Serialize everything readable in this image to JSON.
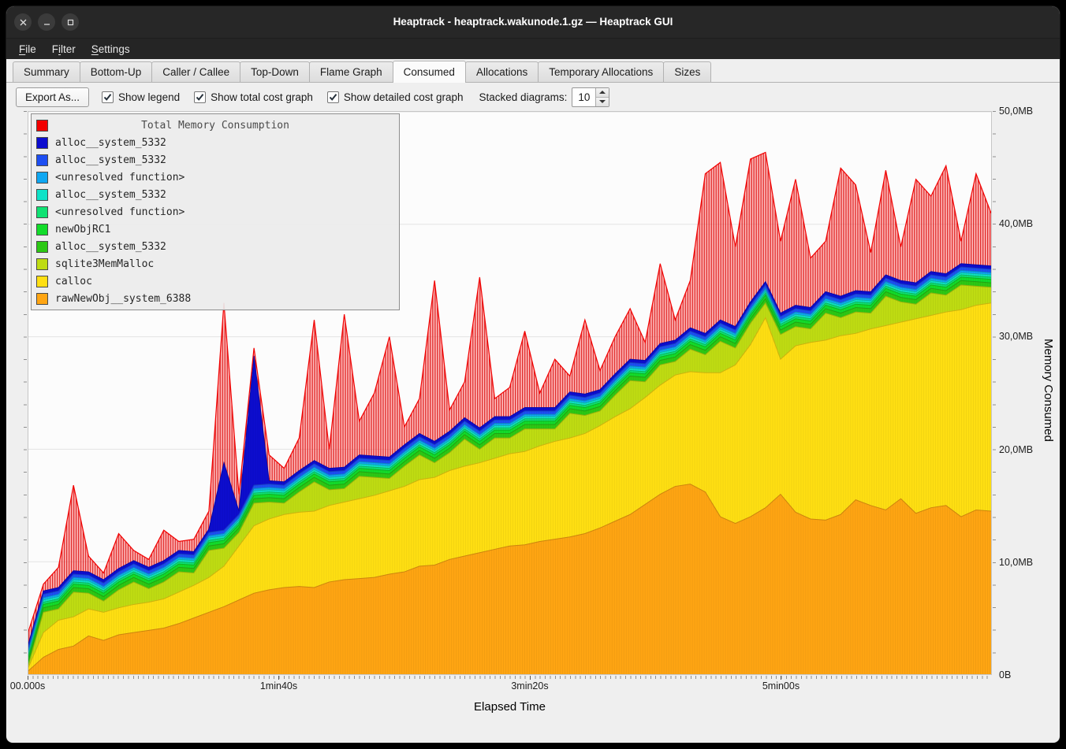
{
  "window": {
    "title": "Heaptrack - heaptrack.wakunode.1.gz — Heaptrack GUI",
    "controls": [
      "close",
      "minimize",
      "maximize"
    ]
  },
  "menu": {
    "items": [
      {
        "label": "File",
        "mnemonic_index": 0
      },
      {
        "label": "Filter",
        "mnemonic_index": 1
      },
      {
        "label": "Settings",
        "mnemonic_index": 0
      }
    ]
  },
  "tabs": {
    "active": "Consumed",
    "items": [
      "Summary",
      "Bottom-Up",
      "Caller / Callee",
      "Top-Down",
      "Flame Graph",
      "Consumed",
      "Allocations",
      "Temporary Allocations",
      "Sizes"
    ]
  },
  "toolbar": {
    "export_label": "Export As...",
    "checkboxes": [
      {
        "label": "Show legend",
        "checked": true
      },
      {
        "label": "Show total cost graph",
        "checked": true
      },
      {
        "label": "Show detailed cost graph",
        "checked": true
      }
    ],
    "stacked_label": "Stacked diagrams:",
    "stacked_value": "10"
  },
  "chart_data": {
    "type": "area",
    "stacked": true,
    "title": "Total Memory Consumption",
    "xlabel": "Elapsed Time",
    "ylabel": "Memory Consumed",
    "grid": "horizontal",
    "legend_position": "top-left",
    "xlim": [
      0,
      384
    ],
    "ylim": [
      0,
      50
    ],
    "x_ticks": [
      {
        "pos": 0,
        "label": "00.000s"
      },
      {
        "pos": 100,
        "label": "1min40s"
      },
      {
        "pos": 200,
        "label": "3min20s"
      },
      {
        "pos": 300,
        "label": "5min00s"
      }
    ],
    "y_ticks": [
      {
        "pos": 0,
        "label": "0B"
      },
      {
        "pos": 10,
        "label": "10,0MB"
      },
      {
        "pos": 20,
        "label": "20,0MB"
      },
      {
        "pos": 30,
        "label": "30,0MB"
      },
      {
        "pos": 40,
        "label": "40,0MB"
      },
      {
        "pos": 50,
        "label": "50,0MB"
      }
    ],
    "x": [
      0,
      6,
      12,
      18,
      24,
      30,
      36,
      42,
      48,
      54,
      60,
      66,
      72,
      78,
      84,
      90,
      96,
      102,
      108,
      114,
      120,
      126,
      132,
      138,
      144,
      150,
      156,
      162,
      168,
      174,
      180,
      186,
      192,
      198,
      204,
      210,
      216,
      222,
      228,
      234,
      240,
      246,
      252,
      258,
      264,
      270,
      276,
      282,
      288,
      294,
      300,
      306,
      312,
      318,
      324,
      330,
      336,
      342,
      348,
      354,
      360,
      366,
      372,
      378,
      384
    ],
    "value_unit": "MB",
    "series": [
      {
        "name": "rawNewObj__system_6388",
        "color": "#ffa512",
        "values": [
          0.3,
          1.5,
          2.2,
          2.5,
          3.4,
          3.0,
          3.5,
          3.7,
          3.9,
          4.1,
          4.5,
          5.0,
          5.5,
          6.0,
          6.6,
          7.2,
          7.5,
          7.7,
          7.8,
          7.7,
          8.2,
          8.4,
          8.5,
          8.6,
          8.9,
          9.1,
          9.6,
          9.7,
          10.2,
          10.5,
          10.8,
          11.1,
          11.4,
          11.5,
          11.8,
          12.0,
          12.2,
          12.5,
          13.0,
          13.6,
          14.2,
          15.1,
          16.0,
          16.7,
          16.9,
          16.2,
          14.0,
          13.4,
          14.0,
          14.8,
          16.0,
          14.4,
          13.8,
          13.7,
          14.2,
          15.5,
          15.0,
          14.6,
          15.6,
          14.3,
          14.8,
          15.0,
          14.0,
          14.6,
          14.5
        ]
      },
      {
        "name": "calloc",
        "color": "#ffdf12",
        "values": [
          0.3,
          2.2,
          2.6,
          2.6,
          2.4,
          2.5,
          2.4,
          2.5,
          2.5,
          2.6,
          2.8,
          2.9,
          3.1,
          3.6,
          4.8,
          6.0,
          6.3,
          6.5,
          6.6,
          6.8,
          6.8,
          6.9,
          7.1,
          7.3,
          7.4,
          7.6,
          7.7,
          7.8,
          7.9,
          8.0,
          8.0,
          8.1,
          8.2,
          8.3,
          8.5,
          8.7,
          8.8,
          8.9,
          9.1,
          9.3,
          9.4,
          9.5,
          9.7,
          9.9,
          10.0,
          10.6,
          12.8,
          14.1,
          15.3,
          16.9,
          12.0,
          14.8,
          15.7,
          16.0,
          15.9,
          14.8,
          15.7,
          16.4,
          15.7,
          17.3,
          17.1,
          17.2,
          18.4,
          18.2,
          18.5
        ]
      },
      {
        "name": "sqlite3MemMalloc",
        "color": "#bfdc12",
        "values": [
          0.2,
          1.8,
          1.0,
          2.2,
          1.4,
          1.0,
          1.6,
          2.0,
          1.2,
          1.5,
          1.8,
          1.1,
          2.4,
          1.6,
          1.2,
          2.0,
          1.5,
          1.0,
          1.8,
          2.6,
          1.4,
          1.2,
          2.0,
          1.6,
          1.1,
          1.8,
          2.2,
          1.3,
          1.6,
          2.4,
          1.2,
          1.8,
          1.4,
          2.0,
          1.5,
          1.1,
          2.2,
          1.6,
          1.3,
          1.9,
          2.5,
          1.4,
          1.8,
          1.2,
          2.0,
          1.6,
          2.8,
          1.5,
          1.9,
          1.3,
          2.2,
          1.7,
          1.2,
          2.4,
          1.6,
          1.9,
          1.4,
          2.6,
          1.8,
          1.3,
          2.0,
          1.5,
          2.2,
          1.7,
          1.4
        ]
      },
      {
        "name": "alloc__system_5332",
        "color": "#2cc814",
        "value": 0.4
      },
      {
        "name": "newObjRC1",
        "color": "#12dc2a",
        "value": 0.3
      },
      {
        "name": "<unresolved function>",
        "color": "#0fe273",
        "value": 0.2
      },
      {
        "name": "alloc__system_5332",
        "color": "#0fe2c8",
        "value": 0.2
      },
      {
        "name": "<unresolved function>",
        "color": "#0fa7f2",
        "value": 0.2
      },
      {
        "name": "alloc__system_5332",
        "color": "#1d4ef2",
        "value": 0.3
      },
      {
        "name": "alloc__system_5332",
        "color": "#0d0dcf",
        "values": [
          0.3,
          0.3,
          0.3,
          0.3,
          0.3,
          0.3,
          0.3,
          0.3,
          0.3,
          0.3,
          0.3,
          0.3,
          0.3,
          6.0,
          0.3,
          11.5,
          0.3,
          0.3,
          0.3,
          0.3,
          0.3,
          0.3,
          0.3,
          0.3,
          0.3,
          0.3,
          0.3,
          0.3,
          0.3,
          0.3,
          0.3,
          0.3,
          0.3,
          0.3,
          0.3,
          0.3,
          0.3,
          0.3,
          0.3,
          0.3,
          0.3,
          0.3,
          0.3,
          0.3,
          0.3,
          0.3,
          0.3,
          0.3,
          0.3,
          0.3,
          0.3,
          0.3,
          0.3,
          0.3,
          0.3,
          0.3,
          0.3,
          0.3,
          0.3,
          0.3,
          0.3,
          0.3,
          0.3,
          0.3,
          0.3
        ]
      }
    ],
    "total_series": {
      "name": "Total Memory Consumption",
      "color": "#f20000",
      "values": [
        3.8,
        8.0,
        9.5,
        16.8,
        10.5,
        9.0,
        12.5,
        11.0,
        10.2,
        12.8,
        11.8,
        12.0,
        14.5,
        33.0,
        16.0,
        29.0,
        19.5,
        18.3,
        21.0,
        31.5,
        20.0,
        32.0,
        22.5,
        25.0,
        30.0,
        22.0,
        24.5,
        35.0,
        23.5,
        26.0,
        35.3,
        24.5,
        25.5,
        30.5,
        25.0,
        28.0,
        26.5,
        31.5,
        27.0,
        30.0,
        32.5,
        29.5,
        36.5,
        31.5,
        35.0,
        44.5,
        45.5,
        38.0,
        45.8,
        46.4,
        38.5,
        44.0,
        37.0,
        38.5,
        45.0,
        43.5,
        37.5,
        44.8,
        38.0,
        44.0,
        42.5,
        45.2,
        38.5,
        44.5,
        41.0
      ]
    }
  }
}
